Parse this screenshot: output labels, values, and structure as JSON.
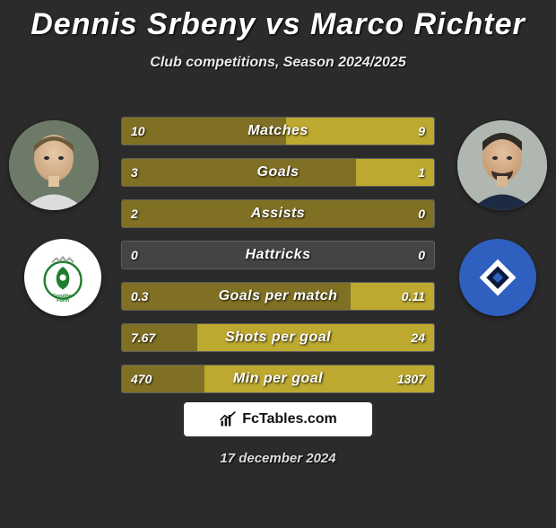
{
  "title": "Dennis Srbeny vs Marco Richter",
  "subtitle": "Club competitions, Season 2024/2025",
  "date": "17 december 2024",
  "footer_brand": "FcTables.com",
  "colors": {
    "bg": "#2b2b2b",
    "bar_left": "#807024",
    "bar_right": "#bda92f",
    "bar_track": "#444444"
  },
  "players": {
    "p1": {
      "name": "Dennis Srbeny",
      "club": "Greuther Fürth"
    },
    "p2": {
      "name": "Marco Richter",
      "club": "Hamburger SV"
    }
  },
  "stats": [
    {
      "label": "Matches",
      "left_val": "10",
      "right_val": "9",
      "left_pct": 52.6,
      "right_pct": 47.4
    },
    {
      "label": "Goals",
      "left_val": "3",
      "right_val": "1",
      "left_pct": 75.0,
      "right_pct": 25.0
    },
    {
      "label": "Assists",
      "left_val": "2",
      "right_val": "0",
      "left_pct": 100.0,
      "right_pct": 0.0
    },
    {
      "label": "Hattricks",
      "left_val": "0",
      "right_val": "0",
      "left_pct": 0.0,
      "right_pct": 0.0
    },
    {
      "label": "Goals per match",
      "left_val": "0.3",
      "right_val": "0.11",
      "left_pct": 73.2,
      "right_pct": 26.8
    },
    {
      "label": "Shots per goal",
      "left_val": "7.67",
      "right_val": "24",
      "left_pct": 24.2,
      "right_pct": 75.8
    },
    {
      "label": "Min per goal",
      "left_val": "470",
      "right_val": "1307",
      "left_pct": 26.4,
      "right_pct": 73.6
    }
  ]
}
